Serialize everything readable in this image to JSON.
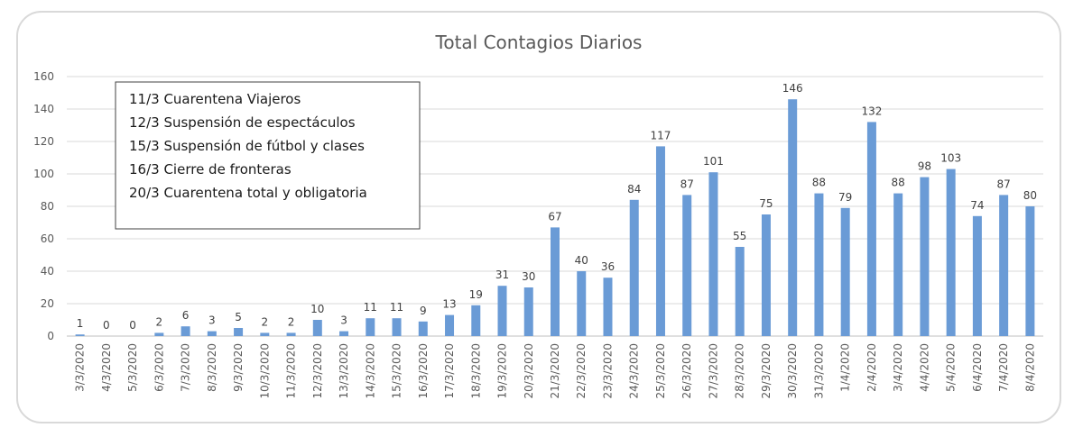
{
  "chart_data": {
    "type": "bar",
    "title": "Total Contagios Diarios",
    "xlabel": "",
    "ylabel": "",
    "ylim": [
      0,
      160
    ],
    "yticks": [
      0,
      20,
      40,
      60,
      80,
      100,
      120,
      140,
      160
    ],
    "grid": true,
    "bar_color": "#6a9bd6",
    "categories": [
      "3/3/2020",
      "4/3/2020",
      "5/3/2020",
      "6/3/2020",
      "7/3/2020",
      "8/3/2020",
      "9/3/2020",
      "10/3/2020",
      "11/3/2020",
      "12/3/2020",
      "13/3/2020",
      "14/3/2020",
      "15/3/2020",
      "16/3/2020",
      "17/3/2020",
      "18/3/2020",
      "19/3/2020",
      "20/3/2020",
      "21/3/2020",
      "22/3/2020",
      "23/3/2020",
      "24/3/2020",
      "25/3/2020",
      "26/3/2020",
      "27/3/2020",
      "28/3/2020",
      "29/3/2020",
      "30/3/2020",
      "31/3/2020",
      "1/4/2020",
      "2/4/2020",
      "3/4/2020",
      "4/4/2020",
      "5/4/2020",
      "6/4/2020",
      "7/4/2020",
      "8/4/2020"
    ],
    "values": [
      1,
      0,
      0,
      2,
      6,
      3,
      5,
      2,
      2,
      10,
      3,
      11,
      11,
      9,
      13,
      19,
      31,
      30,
      67,
      40,
      36,
      84,
      117,
      87,
      101,
      55,
      75,
      146,
      88,
      79,
      132,
      88,
      98,
      103,
      74,
      87,
      80
    ],
    "annotations": [
      "11/3 Cuarentena Viajeros",
      "12/3 Suspensión de espectáculos",
      "15/3 Suspensión de fútbol y clases",
      "16/3 Cierre de fronteras",
      "20/3 Cuarentena total y obligatoria"
    ]
  }
}
